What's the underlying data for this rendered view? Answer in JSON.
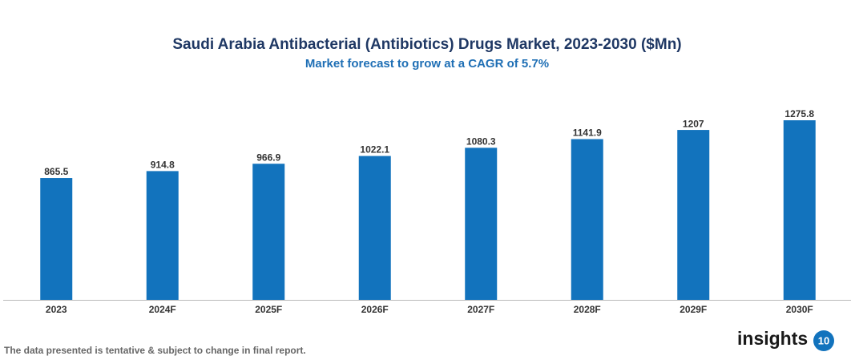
{
  "chart_data": {
    "type": "bar",
    "title": "Saudi Arabia Antibacterial (Antibiotics) Drugs Market, 2023-2030 ($Mn)",
    "subtitle": "Market forecast to grow at a CAGR of 5.7%",
    "categories": [
      "2023",
      "2024F",
      "2025F",
      "2026F",
      "2027F",
      "2028F",
      "2029F",
      "2030F"
    ],
    "values": [
      865.5,
      914.8,
      966.9,
      1022.1,
      1080.3,
      1141.9,
      1207,
      1275.8
    ],
    "color": "#1273bd"
  },
  "footnote": "The data presented is tentative & subject to change in final report.",
  "logo": {
    "text": "insights",
    "badge": "10"
  }
}
